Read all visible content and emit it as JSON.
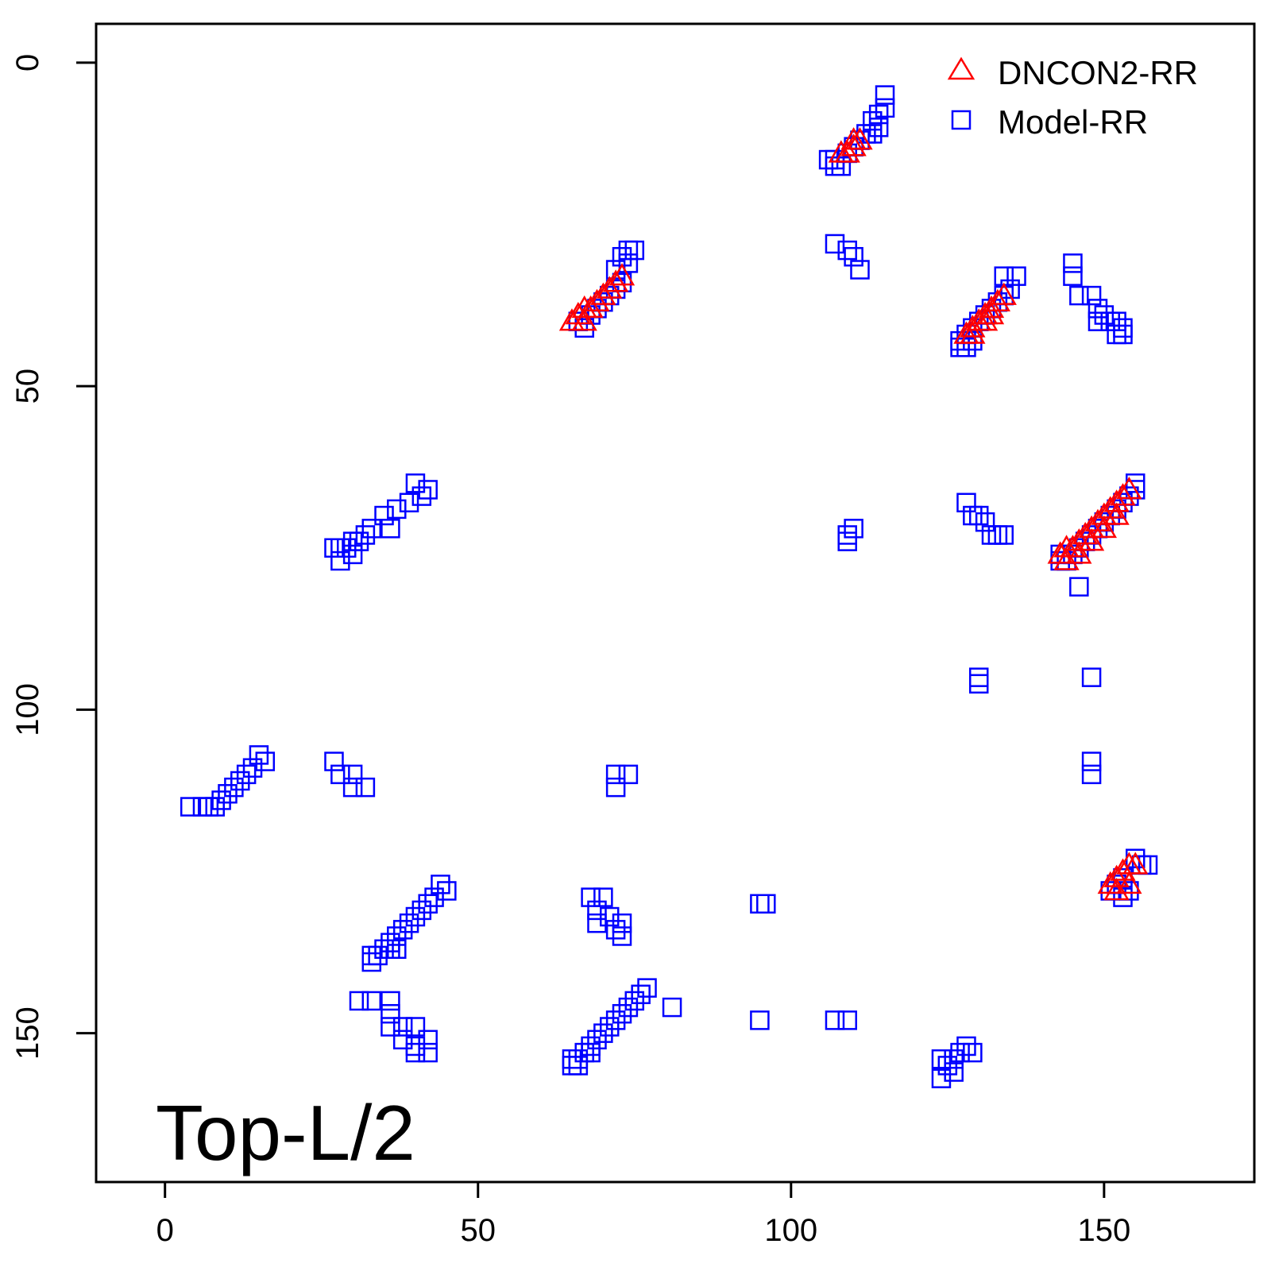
{
  "chart_data": {
    "type": "scatter",
    "title": "",
    "xlabel": "",
    "ylabel": "",
    "xlim": [
      -11,
      174
    ],
    "ylim": [
      -6,
      173
    ],
    "y_reversed": true,
    "x_ticks": [
      0,
      50,
      100,
      150
    ],
    "y_ticks": [
      0,
      50,
      100,
      150
    ],
    "grid": false,
    "legend_position": "top-right",
    "annotation": "Top-L/2",
    "series": [
      {
        "name": "Model-RR",
        "marker": "square",
        "color": "#0000ff",
        "points": [
          [
            107,
            15
          ],
          [
            108,
            16
          ],
          [
            109,
            14
          ],
          [
            110,
            13
          ],
          [
            111,
            12
          ],
          [
            112,
            11
          ],
          [
            113,
            9
          ],
          [
            114,
            8
          ],
          [
            115,
            7
          ],
          [
            115,
            5
          ],
          [
            106,
            15
          ],
          [
            107,
            16
          ],
          [
            113,
            11
          ],
          [
            114,
            10
          ],
          [
            107,
            28
          ],
          [
            109,
            29
          ],
          [
            110,
            30
          ],
          [
            111,
            32
          ],
          [
            66,
            40
          ],
          [
            67,
            41
          ],
          [
            68,
            39
          ],
          [
            69,
            38
          ],
          [
            70,
            37
          ],
          [
            71,
            36
          ],
          [
            72,
            35
          ],
          [
            73,
            34
          ],
          [
            72,
            32
          ],
          [
            73,
            30
          ],
          [
            74,
            29
          ],
          [
            75,
            29
          ],
          [
            74,
            31
          ],
          [
            127,
            43
          ],
          [
            128,
            42
          ],
          [
            129,
            41
          ],
          [
            130,
            40
          ],
          [
            131,
            39
          ],
          [
            132,
            38
          ],
          [
            133,
            37
          ],
          [
            134,
            36
          ],
          [
            135,
            35
          ],
          [
            136,
            33
          ],
          [
            134,
            33
          ],
          [
            127,
            44
          ],
          [
            128,
            44
          ],
          [
            129,
            43
          ],
          [
            145,
            31
          ],
          [
            145,
            33
          ],
          [
            146,
            36
          ],
          [
            148,
            36
          ],
          [
            149,
            38
          ],
          [
            150,
            39
          ],
          [
            151,
            40
          ],
          [
            152,
            40
          ],
          [
            152,
            42
          ],
          [
            153,
            41
          ],
          [
            153,
            42
          ],
          [
            149,
            40
          ],
          [
            40,
            65
          ],
          [
            41,
            67
          ],
          [
            42,
            66
          ],
          [
            39,
            68
          ],
          [
            37,
            69
          ],
          [
            35,
            70
          ],
          [
            36,
            72
          ],
          [
            33,
            72
          ],
          [
            32,
            73
          ],
          [
            31,
            74
          ],
          [
            30,
            74
          ],
          [
            29,
            75
          ],
          [
            28,
            75
          ],
          [
            30,
            76
          ],
          [
            28,
            77
          ],
          [
            27,
            75
          ],
          [
            128,
            68
          ],
          [
            130,
            70
          ],
          [
            129,
            70
          ],
          [
            131,
            71
          ],
          [
            132,
            73
          ],
          [
            134,
            73
          ],
          [
            133,
            73
          ],
          [
            110,
            72
          ],
          [
            109,
            73
          ],
          [
            109,
            74
          ],
          [
            143,
            76
          ],
          [
            144,
            77
          ],
          [
            145,
            76
          ],
          [
            146,
            75
          ],
          [
            147,
            74
          ],
          [
            148,
            73
          ],
          [
            149,
            72
          ],
          [
            150,
            71
          ],
          [
            151,
            70
          ],
          [
            152,
            69
          ],
          [
            153,
            68
          ],
          [
            154,
            67
          ],
          [
            155,
            66
          ],
          [
            155,
            65
          ],
          [
            143,
            77
          ],
          [
            146,
            81
          ],
          [
            130,
            95
          ],
          [
            130,
            96
          ],
          [
            148,
            95
          ],
          [
            148,
            108
          ],
          [
            148,
            110
          ],
          [
            15,
            107
          ],
          [
            16,
            108
          ],
          [
            14,
            109
          ],
          [
            13,
            110
          ],
          [
            12,
            111
          ],
          [
            11,
            112
          ],
          [
            10,
            113
          ],
          [
            9,
            114
          ],
          [
            8,
            115
          ],
          [
            7,
            115
          ],
          [
            6,
            115
          ],
          [
            4,
            115
          ],
          [
            27,
            108
          ],
          [
            28,
            110
          ],
          [
            30,
            110
          ],
          [
            30,
            112
          ],
          [
            32,
            112
          ],
          [
            72,
            110
          ],
          [
            74,
            110
          ],
          [
            72,
            112
          ],
          [
            44,
            127
          ],
          [
            45,
            128
          ],
          [
            43,
            129
          ],
          [
            42,
            130
          ],
          [
            41,
            131
          ],
          [
            40,
            132
          ],
          [
            39,
            133
          ],
          [
            38,
            134
          ],
          [
            37,
            135
          ],
          [
            36,
            136
          ],
          [
            35,
            137
          ],
          [
            34,
            138
          ],
          [
            33,
            138
          ],
          [
            33,
            139
          ],
          [
            36,
            137
          ],
          [
            37,
            137
          ],
          [
            68,
            129
          ],
          [
            70,
            129
          ],
          [
            69,
            131
          ],
          [
            69,
            133
          ],
          [
            71,
            132
          ],
          [
            72,
            134
          ],
          [
            73,
            133
          ],
          [
            73,
            135
          ],
          [
            95,
            130
          ],
          [
            96,
            130
          ],
          [
            155,
            123
          ],
          [
            156,
            124
          ],
          [
            157,
            124
          ],
          [
            153,
            126
          ],
          [
            152,
            127
          ],
          [
            151,
            128
          ],
          [
            154,
            128
          ],
          [
            153,
            129
          ],
          [
            77,
            143
          ],
          [
            76,
            144
          ],
          [
            75,
            145
          ],
          [
            74,
            146
          ],
          [
            73,
            147
          ],
          [
            72,
            148
          ],
          [
            71,
            149
          ],
          [
            70,
            150
          ],
          [
            69,
            151
          ],
          [
            68,
            152
          ],
          [
            67,
            153
          ],
          [
            66,
            154
          ],
          [
            65,
            154
          ],
          [
            65,
            155
          ],
          [
            66,
            155
          ],
          [
            68,
            153
          ],
          [
            81,
            146
          ],
          [
            31,
            145
          ],
          [
            33,
            145
          ],
          [
            36,
            145
          ],
          [
            36,
            147
          ],
          [
            36,
            149
          ],
          [
            38,
            149
          ],
          [
            38,
            151
          ],
          [
            40,
            149
          ],
          [
            40,
            152
          ],
          [
            40,
            153
          ],
          [
            42,
            151
          ],
          [
            42,
            153
          ],
          [
            95,
            148
          ],
          [
            107,
            148
          ],
          [
            109,
            148
          ],
          [
            124,
            154
          ],
          [
            125,
            155
          ],
          [
            126,
            154
          ],
          [
            127,
            153
          ],
          [
            128,
            152
          ],
          [
            129,
            153
          ],
          [
            126,
            156
          ],
          [
            124,
            157
          ]
        ]
      },
      {
        "name": "DNCON2-RR",
        "marker": "triangle",
        "color": "#ff0000",
        "points": [
          [
            108,
            14
          ],
          [
            109,
            14
          ],
          [
            110,
            13
          ],
          [
            111,
            12
          ],
          [
            110,
            12
          ],
          [
            65,
            40
          ],
          [
            66,
            39
          ],
          [
            67,
            38
          ],
          [
            68,
            38
          ],
          [
            69,
            37
          ],
          [
            70,
            36
          ],
          [
            71,
            35
          ],
          [
            72,
            34
          ],
          [
            73,
            33
          ],
          [
            67,
            40
          ],
          [
            128,
            42
          ],
          [
            129,
            41
          ],
          [
            130,
            40
          ],
          [
            131,
            39
          ],
          [
            132,
            38
          ],
          [
            133,
            37
          ],
          [
            134,
            36
          ],
          [
            129,
            42
          ],
          [
            131,
            40
          ],
          [
            132,
            39
          ],
          [
            143,
            76
          ],
          [
            144,
            75
          ],
          [
            145,
            75
          ],
          [
            146,
            74
          ],
          [
            147,
            73
          ],
          [
            148,
            72
          ],
          [
            149,
            71
          ],
          [
            150,
            70
          ],
          [
            151,
            69
          ],
          [
            152,
            68
          ],
          [
            153,
            67
          ],
          [
            154,
            66
          ],
          [
            144,
            77
          ],
          [
            146,
            76
          ],
          [
            148,
            74
          ],
          [
            150,
            72
          ],
          [
            152,
            70
          ],
          [
            151,
            127
          ],
          [
            152,
            126
          ],
          [
            153,
            125
          ],
          [
            154,
            124
          ],
          [
            155,
            124
          ],
          [
            152,
            128
          ],
          [
            154,
            127
          ]
        ]
      }
    ]
  }
}
